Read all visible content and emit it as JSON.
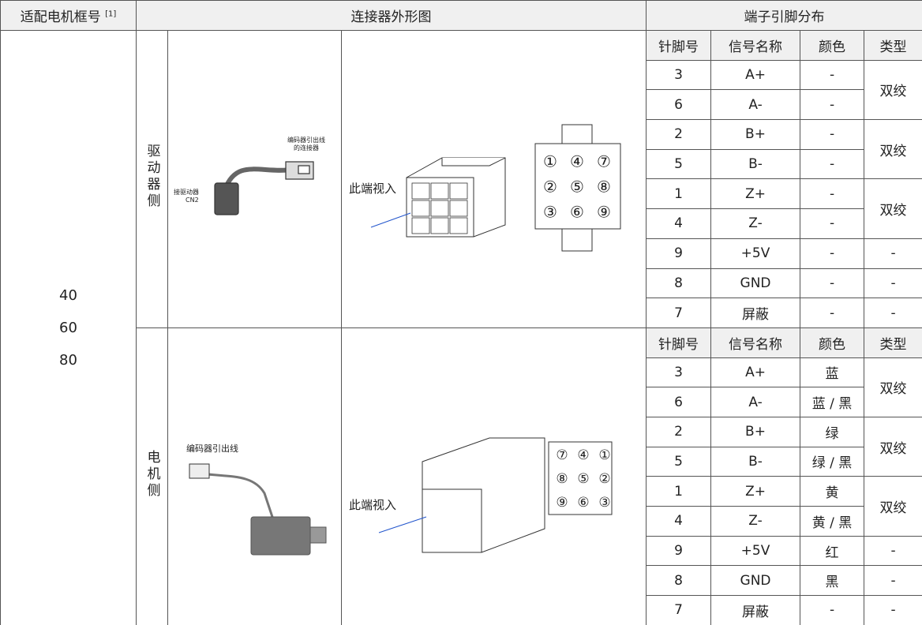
{
  "header": {
    "motor_frame": "适配电机框号",
    "footnote": "[1]",
    "connector_figure": "连接器外形图",
    "pin_layout": "端子引脚分布"
  },
  "motor_frames": [
    "40",
    "60",
    "80"
  ],
  "sections": [
    {
      "side": "驱动器侧",
      "photo_labels": [
        "编码器引出线",
        "的连接器",
        "接驱动器",
        "CN2"
      ],
      "view_label": "此端视入",
      "pins": [
        "①",
        "④",
        "⑦",
        "②",
        "⑤",
        "⑧",
        "③",
        "⑥",
        "⑨"
      ],
      "columns": [
        "针脚号",
        "信号名称",
        "颜色",
        "类型"
      ],
      "rows": [
        [
          3,
          "A+",
          "-",
          "双绞"
        ],
        [
          6,
          "A-",
          "-",
          null
        ],
        [
          2,
          "B+",
          "-",
          "双绞"
        ],
        [
          5,
          "B-",
          "-",
          null
        ],
        [
          1,
          "Z+",
          "-",
          "双绞"
        ],
        [
          4,
          "Z-",
          "-",
          null
        ],
        [
          9,
          "+5V",
          "-",
          "-"
        ],
        [
          8,
          "GND",
          "-",
          "-"
        ],
        [
          7,
          "屏蔽",
          "-",
          "-"
        ]
      ]
    },
    {
      "side": "电机侧",
      "photo_labels": [
        "编码器引出线"
      ],
      "view_label": "此端视入",
      "pins": [
        "⑦",
        "④",
        "①",
        "⑧",
        "⑤",
        "②",
        "⑨",
        "⑥",
        "③"
      ],
      "columns": [
        "针脚号",
        "信号名称",
        "颜色",
        "类型"
      ],
      "rows": [
        [
          3,
          "A+",
          "蓝",
          "双绞"
        ],
        [
          6,
          "A-",
          "蓝 / 黑",
          null
        ],
        [
          2,
          "B+",
          "绿",
          "双绞"
        ],
        [
          5,
          "B-",
          "绿 / 黑",
          null
        ],
        [
          1,
          "Z+",
          "黄",
          "双绞"
        ],
        [
          4,
          "Z-",
          "黄 / 黑",
          null
        ],
        [
          9,
          "+5V",
          "红",
          "-"
        ],
        [
          8,
          "GND",
          "黑",
          "-"
        ],
        [
          7,
          "屏蔽",
          "-",
          "-"
        ]
      ]
    }
  ]
}
